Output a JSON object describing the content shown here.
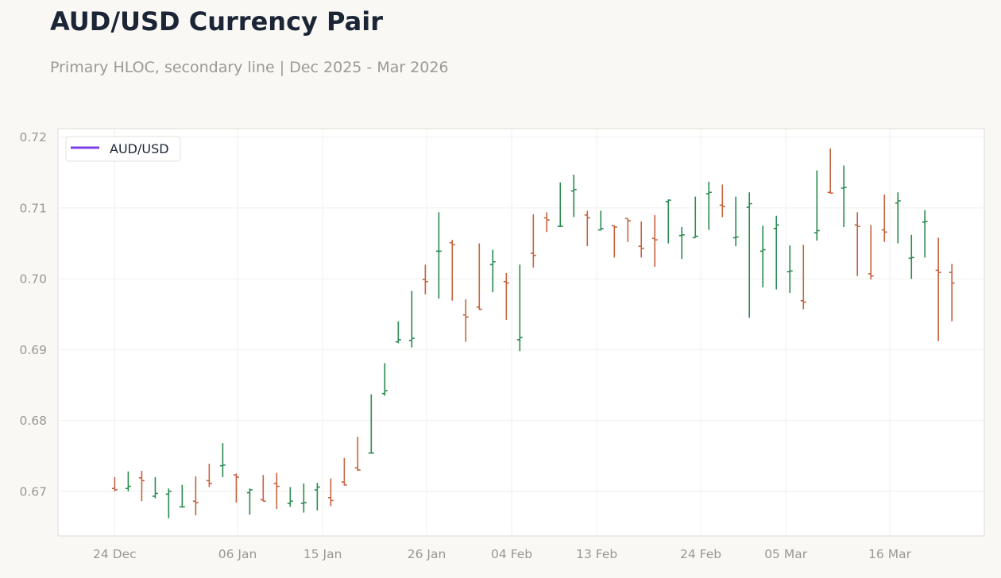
{
  "chart_data": {
    "type": "hloc",
    "title": "AUD/USD Currency Pair",
    "subtitle": "Primary HLOC, secondary line | Dec 2025 - Mar 2026",
    "legend": {
      "position": "top-left",
      "entries": [
        {
          "name": "AUD/USD",
          "color": "#7b3fe4"
        }
      ]
    },
    "colors": {
      "up": "#2a8a4e",
      "down": "#c4623f",
      "grid": "#efefec",
      "axis": "#dedbd2",
      "tick_text": "#999993"
    },
    "grid": true,
    "y_ticks": [
      0.67,
      0.68,
      0.69,
      0.7,
      0.71,
      0.72
    ],
    "y_tick_labels": [
      "0.67",
      "0.68",
      "0.69",
      "0.70",
      "0.71",
      "0.72"
    ],
    "ylim": [
      0.6637,
      0.7212
    ],
    "x_ticks": [
      {
        "label": "24 Dec",
        "day": 0
      },
      {
        "label": "06 Jan",
        "day": 13
      },
      {
        "label": "15 Jan",
        "day": 22
      },
      {
        "label": "26 Jan",
        "day": 33
      },
      {
        "label": "04 Feb",
        "day": 42
      },
      {
        "label": "13 Feb",
        "day": 51
      },
      {
        "label": "24 Feb",
        "day": 62
      },
      {
        "label": "05 Mar",
        "day": 71
      },
      {
        "label": "16 Mar",
        "day": 82
      }
    ],
    "xlim": [
      -6,
      92
    ],
    "series": [
      {
        "name": "AUD/USD",
        "bars": [
          {
            "day": 0,
            "open": 0.6704,
            "high": 0.672,
            "low": 0.67,
            "close": 0.6702
          },
          {
            "day": 1.43,
            "open": 0.6704,
            "high": 0.6728,
            "low": 0.67,
            "close": 0.6707
          },
          {
            "day": 2.86,
            "open": 0.6719,
            "high": 0.6729,
            "low": 0.6686,
            "close": 0.6715
          },
          {
            "day": 4.29,
            "open": 0.6693,
            "high": 0.672,
            "low": 0.669,
            "close": 0.6697
          },
          {
            "day": 5.71,
            "open": 0.6696,
            "high": 0.6704,
            "low": 0.6662,
            "close": 0.67
          },
          {
            "day": 7.14,
            "open": 0.6678,
            "high": 0.6709,
            "low": 0.6678,
            "close": 0.6678
          },
          {
            "day": 8.57,
            "open": 0.6686,
            "high": 0.6721,
            "low": 0.6666,
            "close": 0.6684
          },
          {
            "day": 10,
            "open": 0.6715,
            "high": 0.6739,
            "low": 0.6706,
            "close": 0.6711
          },
          {
            "day": 11.43,
            "open": 0.6736,
            "high": 0.6768,
            "low": 0.672,
            "close": 0.6737
          },
          {
            "day": 12.86,
            "open": 0.6723,
            "high": 0.6725,
            "low": 0.6684,
            "close": 0.672
          },
          {
            "day": 14.29,
            "open": 0.6698,
            "high": 0.6704,
            "low": 0.6667,
            "close": 0.6702
          },
          {
            "day": 15.71,
            "open": 0.6688,
            "high": 0.6723,
            "low": 0.6686,
            "close": 0.6686
          },
          {
            "day": 17.14,
            "open": 0.6711,
            "high": 0.6726,
            "low": 0.6675,
            "close": 0.6707
          },
          {
            "day": 18.57,
            "open": 0.6683,
            "high": 0.6706,
            "low": 0.6678,
            "close": 0.6686
          },
          {
            "day": 20,
            "open": 0.6683,
            "high": 0.6711,
            "low": 0.667,
            "close": 0.6684
          },
          {
            "day": 21.43,
            "open": 0.6702,
            "high": 0.6712,
            "low": 0.6673,
            "close": 0.6706
          },
          {
            "day": 22.86,
            "open": 0.6691,
            "high": 0.6718,
            "low": 0.6679,
            "close": 0.6687
          },
          {
            "day": 24.29,
            "open": 0.6713,
            "high": 0.6747,
            "low": 0.6708,
            "close": 0.6709
          },
          {
            "day": 25.71,
            "open": 0.6733,
            "high": 0.6777,
            "low": 0.6729,
            "close": 0.673
          },
          {
            "day": 27.14,
            "open": 0.6754,
            "high": 0.6837,
            "low": 0.6754,
            "close": 0.6754
          },
          {
            "day": 28.57,
            "open": 0.6838,
            "high": 0.6881,
            "low": 0.6835,
            "close": 0.6842
          },
          {
            "day": 30,
            "open": 0.6911,
            "high": 0.694,
            "low": 0.6909,
            "close": 0.6914
          },
          {
            "day": 31.43,
            "open": 0.6913,
            "high": 0.6983,
            "low": 0.6903,
            "close": 0.6916
          },
          {
            "day": 32.86,
            "open": 0.6999,
            "high": 0.702,
            "low": 0.6978,
            "close": 0.6996
          },
          {
            "day": 34.29,
            "open": 0.7039,
            "high": 0.7094,
            "low": 0.6972,
            "close": 0.7039
          },
          {
            "day": 35.71,
            "open": 0.7051,
            "high": 0.7055,
            "low": 0.6969,
            "close": 0.7048
          },
          {
            "day": 37.14,
            "open": 0.6949,
            "high": 0.6971,
            "low": 0.6911,
            "close": 0.6946
          },
          {
            "day": 38.57,
            "open": 0.696,
            "high": 0.705,
            "low": 0.6956,
            "close": 0.6957
          },
          {
            "day": 40,
            "open": 0.702,
            "high": 0.7041,
            "low": 0.6981,
            "close": 0.7024
          },
          {
            "day": 41.43,
            "open": 0.6996,
            "high": 0.7008,
            "low": 0.6942,
            "close": 0.6994
          },
          {
            "day": 42.86,
            "open": 0.6914,
            "high": 0.702,
            "low": 0.6898,
            "close": 0.6917
          },
          {
            "day": 44.29,
            "open": 0.7036,
            "high": 0.7091,
            "low": 0.7016,
            "close": 0.7033
          },
          {
            "day": 45.71,
            "open": 0.7086,
            "high": 0.7094,
            "low": 0.7066,
            "close": 0.7083
          },
          {
            "day": 47.14,
            "open": 0.7074,
            "high": 0.7136,
            "low": 0.7073,
            "close": 0.7074
          },
          {
            "day": 48.57,
            "open": 0.7124,
            "high": 0.7147,
            "low": 0.7087,
            "close": 0.7126
          },
          {
            "day": 50,
            "open": 0.709,
            "high": 0.7096,
            "low": 0.7046,
            "close": 0.7086
          },
          {
            "day": 51.43,
            "open": 0.7069,
            "high": 0.7096,
            "low": 0.7068,
            "close": 0.7071
          },
          {
            "day": 52.86,
            "open": 0.7075,
            "high": 0.7075,
            "low": 0.703,
            "close": 0.7073
          },
          {
            "day": 54.29,
            "open": 0.7085,
            "high": 0.7085,
            "low": 0.7052,
            "close": 0.7082
          },
          {
            "day": 55.71,
            "open": 0.7046,
            "high": 0.7081,
            "low": 0.703,
            "close": 0.7043
          },
          {
            "day": 57.14,
            "open": 0.7057,
            "high": 0.709,
            "low": 0.7017,
            "close": 0.7055
          },
          {
            "day": 58.57,
            "open": 0.7109,
            "high": 0.7112,
            "low": 0.705,
            "close": 0.7111
          },
          {
            "day": 60,
            "open": 0.7061,
            "high": 0.7073,
            "low": 0.7028,
            "close": 0.7062
          },
          {
            "day": 61.43,
            "open": 0.7058,
            "high": 0.7116,
            "low": 0.7058,
            "close": 0.706
          },
          {
            "day": 62.86,
            "open": 0.712,
            "high": 0.7137,
            "low": 0.7069,
            "close": 0.7122
          },
          {
            "day": 64.29,
            "open": 0.7104,
            "high": 0.7133,
            "low": 0.7087,
            "close": 0.7102
          },
          {
            "day": 65.71,
            "open": 0.7058,
            "high": 0.7116,
            "low": 0.7046,
            "close": 0.7059
          },
          {
            "day": 67.14,
            "open": 0.7101,
            "high": 0.7122,
            "low": 0.6945,
            "close": 0.7106
          },
          {
            "day": 68.57,
            "open": 0.7039,
            "high": 0.7075,
            "low": 0.6988,
            "close": 0.7041
          },
          {
            "day": 70,
            "open": 0.7071,
            "high": 0.7089,
            "low": 0.6985,
            "close": 0.7076
          },
          {
            "day": 71.43,
            "open": 0.701,
            "high": 0.7047,
            "low": 0.698,
            "close": 0.7011
          },
          {
            "day": 72.86,
            "open": 0.6969,
            "high": 0.7048,
            "low": 0.6957,
            "close": 0.6967
          },
          {
            "day": 74.29,
            "open": 0.7065,
            "high": 0.7153,
            "low": 0.7054,
            "close": 0.7068
          },
          {
            "day": 75.71,
            "open": 0.7122,
            "high": 0.7184,
            "low": 0.712,
            "close": 0.7121
          },
          {
            "day": 77.14,
            "open": 0.7128,
            "high": 0.716,
            "low": 0.7073,
            "close": 0.7129
          },
          {
            "day": 78.57,
            "open": 0.7076,
            "high": 0.7094,
            "low": 0.7004,
            "close": 0.7074
          },
          {
            "day": 80,
            "open": 0.7007,
            "high": 0.7076,
            "low": 0.6999,
            "close": 0.7004
          },
          {
            "day": 81.43,
            "open": 0.7069,
            "high": 0.7119,
            "low": 0.7052,
            "close": 0.7066
          },
          {
            "day": 82.86,
            "open": 0.7107,
            "high": 0.7122,
            "low": 0.705,
            "close": 0.711
          },
          {
            "day": 84.29,
            "open": 0.7029,
            "high": 0.7062,
            "low": 0.7,
            "close": 0.703
          },
          {
            "day": 85.71,
            "open": 0.708,
            "high": 0.7097,
            "low": 0.703,
            "close": 0.7081
          },
          {
            "day": 87.14,
            "open": 0.7012,
            "high": 0.7058,
            "low": 0.6912,
            "close": 0.7009
          },
          {
            "day": 88.57,
            "open": 0.7009,
            "high": 0.7021,
            "low": 0.694,
            "close": 0.6994
          }
        ]
      }
    ]
  }
}
